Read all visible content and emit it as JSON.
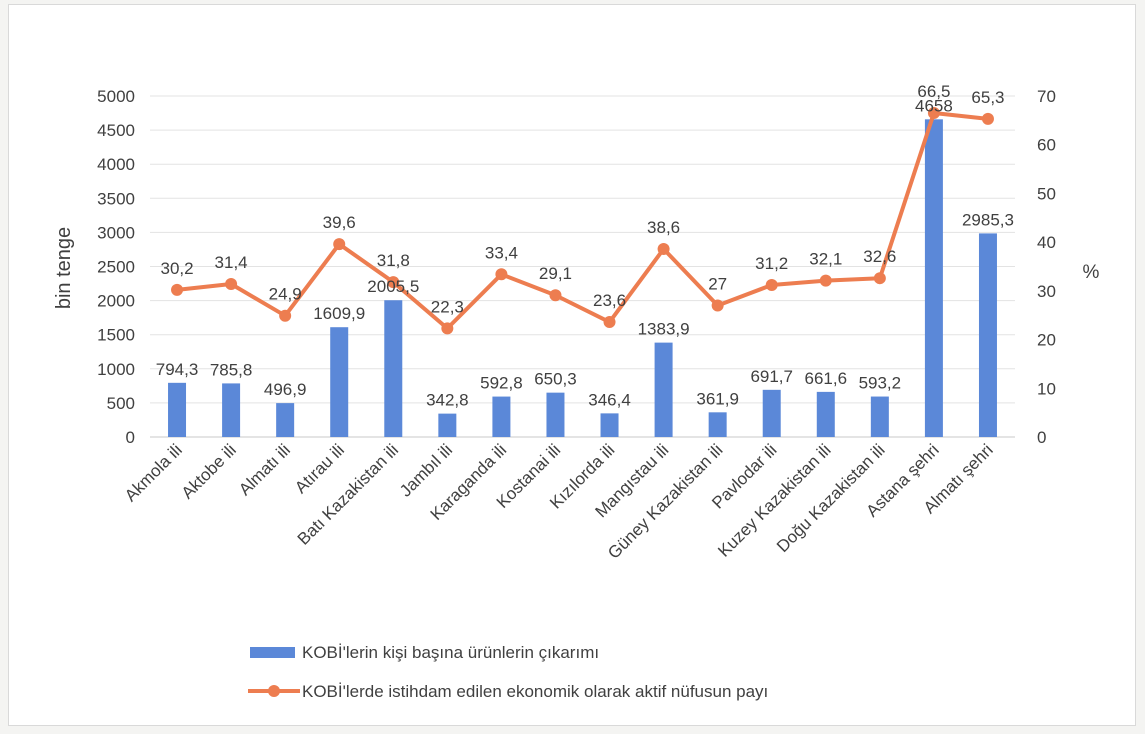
{
  "chart_data": {
    "type": "bar",
    "categories": [
      "Akmola ili",
      "Aktobe ili",
      "Almatı ili",
      "Atırau ili",
      "Batı Kazakistan ili",
      "Jambıl ili",
      "Karaganda ili",
      "Kostanai ili",
      "Kızılorda ili",
      "Mangıstau ili",
      "Güney Kazakistan ili",
      "Pavlodar ili",
      "Kuzey Kazakistan ili",
      "Doğu Kazakistan ili",
      "Astana şehri",
      "Almatı şehri"
    ],
    "series": [
      {
        "name": "KOBİ'lerin kişi başına ürünlerin çıkarımı",
        "type": "bar",
        "axis": "left",
        "values": [
          794.3,
          785.8,
          496.9,
          1609.9,
          2005.5,
          342.8,
          592.8,
          650.3,
          346.4,
          1383.9,
          361.9,
          691.7,
          661.6,
          593.2,
          4658,
          2985.3
        ],
        "labels": [
          "794,3",
          "785,8",
          "496,9",
          "1609,9",
          "2005,5",
          "342,8",
          "592,8",
          "650,3",
          "346,4",
          "1383,9",
          "361,9",
          "691,7",
          "661,6",
          "593,2",
          "4658",
          "2985,3"
        ]
      },
      {
        "name": "KOBİ'lerde istihdam edilen ekonomik olarak aktif nüfusun payı",
        "type": "line",
        "axis": "right",
        "values": [
          30.2,
          31.4,
          24.9,
          39.6,
          31.8,
          22.3,
          33.4,
          29.1,
          23.6,
          38.6,
          27,
          31.2,
          32.1,
          32.6,
          66.5,
          65.3
        ],
        "labels": [
          "30,2",
          "31,4",
          "24,9",
          "39,6",
          "31,8",
          "22,3",
          "33,4",
          "29,1",
          "23,6",
          "38,6",
          "27",
          "31,2",
          "32,1",
          "32,6",
          "66,5",
          "65,3"
        ]
      }
    ],
    "ylabel": "bin tenge",
    "ylim": [
      0,
      5000
    ],
    "yticks": [
      "0",
      "500",
      "1000",
      "1500",
      "2000",
      "2500",
      "3000",
      "3500",
      "4000",
      "4500",
      "5000"
    ],
    "y2label": "%",
    "y2lim": [
      0,
      70
    ],
    "y2ticks": [
      "0",
      "10",
      "20",
      "30",
      "40",
      "50",
      "60",
      "70"
    ],
    "grid": true,
    "legend_position": "bottom",
    "colors": {
      "bar": "#5b88d8",
      "line": "#ed7d50",
      "label": "#404040",
      "grid": "#e3e3e3"
    }
  }
}
